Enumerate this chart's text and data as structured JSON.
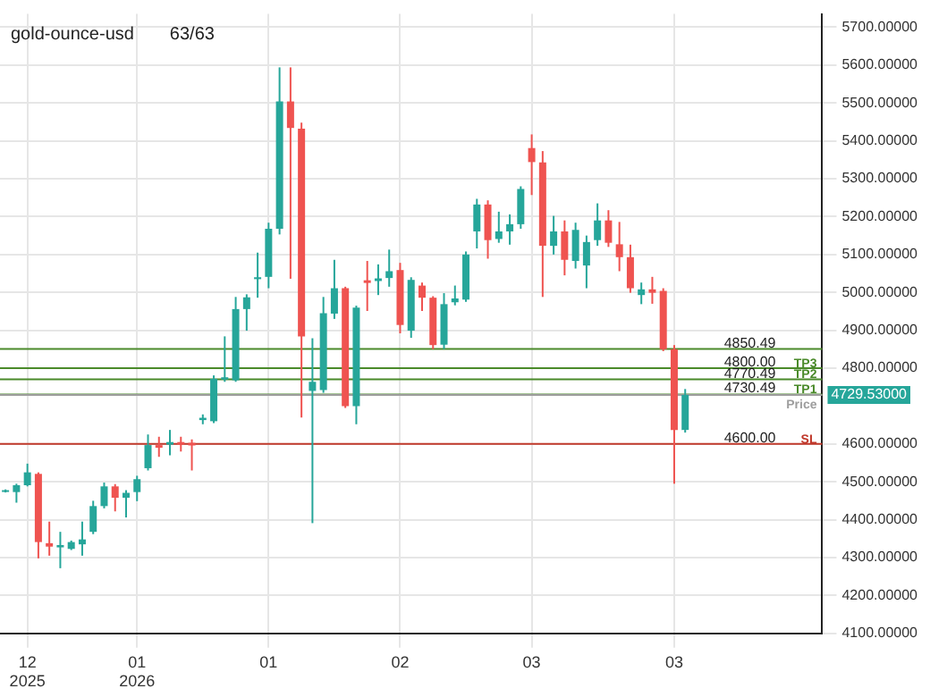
{
  "chart_data": {
    "type": "candlestick",
    "title": "gold-ounce-usd",
    "subtitle": "63/63",
    "categories": [
      null,
      null,
      "12 2025",
      null,
      null,
      null,
      null,
      null,
      null,
      null,
      null,
      null,
      "01 2026",
      null,
      null,
      null,
      null,
      null,
      null,
      null,
      null,
      null,
      null,
      null,
      "01",
      null,
      null,
      null,
      null,
      null,
      null,
      null,
      null,
      null,
      null,
      null,
      "02",
      null,
      null,
      null,
      null,
      null,
      null,
      null,
      null,
      null,
      null,
      null,
      "03",
      null,
      null,
      null,
      null,
      null,
      null,
      null,
      null,
      null,
      null,
      null,
      null,
      "03",
      null,
      null,
      null,
      null,
      null,
      null,
      null,
      null,
      null,
      null,
      null,
      null,
      null
    ],
    "ohlc": [
      [
        4474,
        4480,
        4472,
        4478
      ],
      [
        4473,
        4495,
        4445,
        4491
      ],
      [
        4491,
        4548,
        4488,
        4525
      ],
      [
        4521,
        4525,
        4298,
        4341
      ],
      [
        4338,
        4395,
        4305,
        4329
      ],
      [
        4327,
        4368,
        4272,
        4333
      ],
      [
        4323,
        4345,
        4320,
        4341
      ],
      [
        4335,
        4395,
        4305,
        4348
      ],
      [
        4368,
        4450,
        4362,
        4436
      ],
      [
        4436,
        4498,
        4430,
        4488
      ],
      [
        4488,
        4494,
        4422,
        4458
      ],
      [
        4458,
        4478,
        4406,
        4471
      ],
      [
        4473,
        4516,
        4449,
        4507
      ],
      [
        4536,
        4625,
        4530,
        4597
      ],
      [
        4597,
        4619,
        4566,
        4590
      ],
      [
        4598,
        4637,
        4570,
        4605
      ],
      [
        4605,
        4619,
        4580,
        4598
      ],
      [
        4603,
        4612,
        4530,
        4596
      ],
      [
        4663,
        4678,
        4652,
        4669
      ],
      [
        4660,
        4781,
        4655,
        4772
      ],
      [
        4770,
        4884,
        4764,
        4776
      ],
      [
        4768,
        4988,
        4764,
        4956
      ],
      [
        4956,
        4995,
        4899,
        4987
      ],
      [
        5035,
        5105,
        4986,
        5040
      ],
      [
        5041,
        5184,
        5011,
        5168
      ],
      [
        5168,
        5594,
        5153,
        5504
      ],
      [
        5504,
        5594,
        5036,
        5434
      ],
      [
        5432,
        5448,
        4670,
        4884
      ],
      [
        4740,
        4879,
        4391,
        4764
      ],
      [
        4742,
        4988,
        4735,
        4945
      ],
      [
        4944,
        5086,
        4930,
        5011
      ],
      [
        5011,
        5015,
        4695,
        4700
      ],
      [
        4700,
        4965,
        4652,
        4960
      ],
      [
        5032,
        5083,
        4951,
        5025
      ],
      [
        5030,
        5074,
        4993,
        5037
      ],
      [
        5038,
        5113,
        5015,
        5056
      ],
      [
        5059,
        5078,
        4892,
        4914
      ],
      [
        4899,
        5040,
        4880,
        5033
      ],
      [
        5018,
        5026,
        4951,
        4986
      ],
      [
        4986,
        4990,
        4850,
        4861
      ],
      [
        4862,
        4998,
        4850,
        4969
      ],
      [
        4974,
        5018,
        4966,
        4984
      ],
      [
        4981,
        5108,
        4975,
        5100
      ],
      [
        5161,
        5247,
        5116,
        5232
      ],
      [
        5232,
        5243,
        5089,
        5138
      ],
      [
        5141,
        5213,
        5131,
        5161
      ],
      [
        5161,
        5206,
        5126,
        5180
      ],
      [
        5180,
        5280,
        5168,
        5273
      ],
      [
        5381,
        5417,
        5257,
        5344
      ],
      [
        5343,
        5373,
        4988,
        5123
      ],
      [
        5123,
        5202,
        5100,
        5161
      ],
      [
        5161,
        5190,
        5045,
        5086
      ],
      [
        5083,
        5184,
        5063,
        5165
      ],
      [
        5071,
        5150,
        5011,
        5133
      ],
      [
        5138,
        5235,
        5123,
        5190
      ],
      [
        5190,
        5217,
        5120,
        5131
      ],
      [
        5127,
        5186,
        5056,
        5093
      ],
      [
        5093,
        5126,
        4999,
        5011
      ],
      [
        4993,
        5026,
        4969,
        5008
      ],
      [
        5008,
        5041,
        4970,
        4999
      ],
      [
        5004,
        5011,
        4845,
        4850
      ],
      [
        4850,
        4861,
        4495,
        4637
      ],
      [
        4637,
        4745,
        4630,
        4729.53
      ],
      null,
      null,
      null,
      null,
      null,
      null,
      null,
      null,
      null,
      null,
      null,
      null
    ],
    "colors": [
      "#26a69a",
      "#26a69a",
      "#26a69a",
      "#ef5350",
      "#ef5350",
      "#26a69a",
      "#26a69a",
      "#26a69a",
      "#26a69a",
      "#26a69a",
      "#ef5350",
      "#26a69a",
      "#26a69a",
      "#26a69a",
      "#ef5350",
      "#26a69a",
      "#ef5350",
      "#ef5350",
      "#26a69a",
      "#26a69a",
      "#26a69a",
      "#26a69a",
      "#26a69a",
      "#26a69a",
      "#26a69a",
      "#26a69a",
      "#ef5350",
      "#ef5350",
      "#26a69a",
      "#26a69a",
      "#26a69a",
      "#ef5350",
      "#26a69a",
      "#ef5350",
      "#26a69a",
      "#26a69a",
      "#ef5350",
      "#26a69a",
      "#ef5350",
      "#ef5350",
      "#26a69a",
      "#26a69a",
      "#26a69a",
      "#26a69a",
      "#ef5350",
      "#26a69a",
      "#26a69a",
      "#26a69a",
      "#ef5350",
      "#ef5350",
      "#26a69a",
      "#ef5350",
      "#26a69a",
      "#26a69a",
      "#26a69a",
      "#ef5350",
      "#ef5350",
      "#ef5350",
      "#26a69a",
      "#ef5350",
      "#ef5350",
      "#ef5350",
      "#26a69a",
      null,
      null,
      null,
      null,
      null,
      null,
      null,
      null,
      null,
      null,
      null,
      null
    ],
    "ylim": [
      4100,
      5735
    ],
    "yticks": [
      {
        "value": 4100,
        "label": "4100.00000"
      },
      {
        "value": 4200,
        "label": "4200.00000"
      },
      {
        "value": 4300,
        "label": "4300.00000"
      },
      {
        "value": 4400,
        "label": "4400.00000"
      },
      {
        "value": 4500,
        "label": "4500.00000"
      },
      {
        "value": 4600,
        "label": "4600.00000"
      },
      {
        "value": 4800,
        "label": "4800.00000"
      },
      {
        "value": 4900,
        "label": "4900.00000"
      },
      {
        "value": 5000,
        "label": "5000.00000"
      },
      {
        "value": 5100,
        "label": "5100.00000"
      },
      {
        "value": 5200,
        "label": "5200.00000"
      },
      {
        "value": 5300,
        "label": "5300.00000"
      },
      {
        "value": 5400,
        "label": "5400.00000"
      },
      {
        "value": 5500,
        "label": "5500.00000"
      },
      {
        "value": 5600,
        "label": "5600.00000"
      },
      {
        "value": 5700,
        "label": "5700.00000"
      }
    ],
    "ref_lines": [
      {
        "axis": "y",
        "value": 4850.49,
        "label": null,
        "color": "#4a8a2a"
      },
      {
        "axis": "y",
        "value": 4800,
        "label": "TP3",
        "color": "#4a8a2a"
      },
      {
        "axis": "y",
        "value": 4770.49,
        "label": "TP2",
        "color": "#4a8a2a"
      },
      {
        "axis": "y",
        "value": 4730.49,
        "label": "TP1",
        "color": "#4a8a2a"
      },
      {
        "axis": "y",
        "value": 4729.53,
        "label": "Price",
        "color": "#9e9e9e"
      },
      {
        "axis": "y",
        "value": 4600,
        "label": "SL",
        "color": "#c0392b"
      }
    ],
    "annotations": [
      {
        "text": "4850.49",
        "y": 4850.49
      },
      {
        "text": "4800.00",
        "y": 4800
      },
      {
        "text": "4770.49",
        "y": 4770.49
      },
      {
        "text": "4730.49",
        "y": 4730.49
      },
      {
        "text": "4600.00",
        "y": 4600
      },
      "4729.53000"
    ],
    "grid": true,
    "legend": false
  }
}
